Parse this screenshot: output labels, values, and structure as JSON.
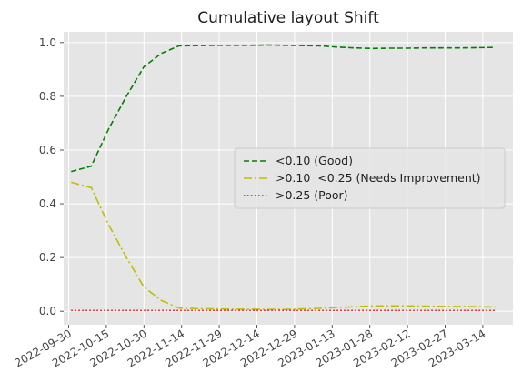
{
  "chart_data": {
    "type": "line",
    "title": "Cumulative layout Shift",
    "xlabel": "",
    "ylabel": "",
    "x_type": "date",
    "xlim": [
      "2022-09-28",
      "2023-03-26"
    ],
    "ylim": [
      -0.05,
      1.04
    ],
    "grid": true,
    "legend_position": "center-right",
    "x_ticks": [
      "2022-09-30",
      "2022-10-15",
      "2022-10-30",
      "2022-11-14",
      "2022-11-29",
      "2022-12-14",
      "2022-12-29",
      "2023-01-13",
      "2023-01-28",
      "2023-02-12",
      "2023-02-27",
      "2023-03-14"
    ],
    "y_ticks": [
      0.0,
      0.2,
      0.4,
      0.6,
      0.8,
      1.0
    ],
    "y_tick_labels": [
      "0.0",
      "0.2",
      "0.4",
      "0.6",
      "0.8",
      "1.0"
    ],
    "x": [
      "2022-10-01",
      "2022-10-09",
      "2022-10-16",
      "2022-10-23",
      "2022-10-30",
      "2022-11-06",
      "2022-11-13",
      "2022-11-20",
      "2022-11-27",
      "2022-12-04",
      "2022-12-11",
      "2022-12-18",
      "2022-12-25",
      "2023-01-01",
      "2023-01-08",
      "2023-01-15",
      "2023-01-22",
      "2023-01-29",
      "2023-02-05",
      "2023-02-12",
      "2023-02-19",
      "2023-02-26",
      "2023-03-05",
      "2023-03-12",
      "2023-03-19"
    ],
    "series": [
      {
        "name": "<0.10 (Good)",
        "color": "#008000",
        "dash": "dashed",
        "values": [
          0.52,
          0.54,
          0.68,
          0.8,
          0.91,
          0.96,
          0.988,
          0.989,
          0.99,
          0.99,
          0.99,
          0.991,
          0.99,
          0.989,
          0.988,
          0.983,
          0.98,
          0.978,
          0.979,
          0.979,
          0.98,
          0.98,
          0.98,
          0.981,
          0.982
        ]
      },
      {
        "name": ">0.10  <0.25 (Needs Improvement)",
        "color": "#bfbf00",
        "dash": "dashdot",
        "values": [
          0.48,
          0.46,
          0.32,
          0.2,
          0.09,
          0.04,
          0.012,
          0.01,
          0.009,
          0.008,
          0.008,
          0.007,
          0.007,
          0.009,
          0.011,
          0.014,
          0.017,
          0.02,
          0.02,
          0.02,
          0.019,
          0.018,
          0.018,
          0.017,
          0.016
        ]
      },
      {
        "name": ">0.25 (Poor)",
        "color": "#ff0000",
        "dash": "dotted",
        "values": [
          0.003,
          0.003,
          0.003,
          0.003,
          0.003,
          0.003,
          0.003,
          0.003,
          0.003,
          0.003,
          0.003,
          0.003,
          0.003,
          0.003,
          0.003,
          0.003,
          0.003,
          0.003,
          0.003,
          0.003,
          0.003,
          0.003,
          0.003,
          0.003,
          0.003
        ]
      }
    ]
  }
}
